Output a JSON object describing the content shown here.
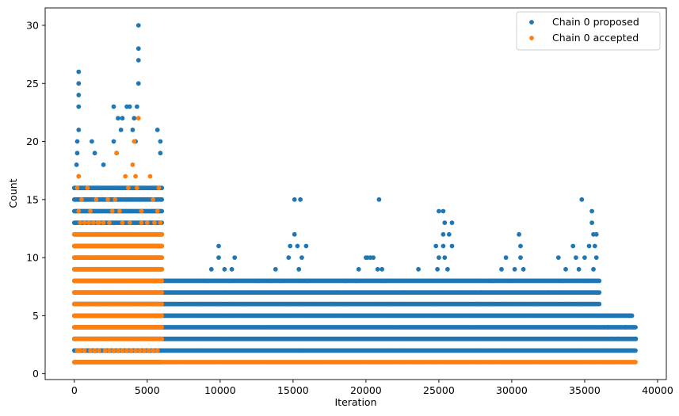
{
  "chart_data": {
    "type": "scatter",
    "title": "",
    "xlabel": "Iteration",
    "ylabel": "Count",
    "xlim": [
      -2000,
      40600
    ],
    "ylim": [
      -0.5,
      31.5
    ],
    "xticks": [
      0,
      5000,
      10000,
      15000,
      20000,
      25000,
      30000,
      35000,
      40000
    ],
    "xtick_labels": [
      "0",
      "5000",
      "10000",
      "15000",
      "20000",
      "25000",
      "30000",
      "35000",
      "40000"
    ],
    "yticks": [
      0,
      5,
      10,
      15,
      20,
      25,
      30
    ],
    "ytick_labels": [
      "0",
      "5",
      "10",
      "15",
      "20",
      "25",
      "30"
    ],
    "grid": false,
    "legend_position": "top-right",
    "series": [
      {
        "name": "Chain 0 proposed",
        "color": "#1f77b4",
        "bands": [
          {
            "y": 1,
            "x": [
              0,
              6000
            ]
          },
          {
            "y": 2,
            "x": [
              0,
              38500
            ]
          },
          {
            "y": 3,
            "x": [
              0,
              38500
            ]
          },
          {
            "y": 4,
            "x": [
              0,
              38500
            ]
          },
          {
            "y": 5,
            "x": [
              0,
              38300
            ]
          },
          {
            "y": 6,
            "x": [
              0,
              36000
            ]
          },
          {
            "y": 7,
            "x": [
              0,
              36000
            ]
          },
          {
            "y": 8,
            "x": [
              0,
              36000
            ]
          },
          {
            "y": 9,
            "x": [
              0,
              6000
            ]
          },
          {
            "y": 10,
            "x": [
              0,
              6000
            ]
          },
          {
            "y": 11,
            "x": [
              0,
              6000
            ]
          },
          {
            "y": 12,
            "x": [
              0,
              6000
            ]
          },
          {
            "y": 13,
            "x": [
              0,
              6000
            ]
          },
          {
            "y": 14,
            "x": [
              0,
              6000
            ]
          },
          {
            "y": 15,
            "x": [
              0,
              6000
            ]
          },
          {
            "y": 16,
            "x": [
              0,
              6000
            ]
          }
        ],
        "points": [
          [
            300,
            26
          ],
          [
            300,
            25
          ],
          [
            300,
            24
          ],
          [
            300,
            23
          ],
          [
            300,
            21
          ],
          [
            200,
            20
          ],
          [
            200,
            19
          ],
          [
            150,
            18
          ],
          [
            300,
            17
          ],
          [
            2700,
            23
          ],
          [
            3000,
            22
          ],
          [
            3300,
            22
          ],
          [
            3600,
            23
          ],
          [
            3800,
            23
          ],
          [
            4100,
            22
          ],
          [
            4300,
            23
          ],
          [
            4400,
            30
          ],
          [
            4400,
            28
          ],
          [
            4400,
            27
          ],
          [
            4400,
            25
          ],
          [
            5700,
            21
          ],
          [
            5900,
            20
          ],
          [
            5900,
            19
          ],
          [
            1200,
            20
          ],
          [
            1400,
            19
          ],
          [
            2000,
            18
          ],
          [
            2700,
            20
          ],
          [
            2900,
            19
          ],
          [
            3200,
            21
          ],
          [
            4000,
            21
          ],
          [
            4200,
            20
          ],
          [
            9900,
            11
          ],
          [
            9900,
            10
          ],
          [
            9400,
            9
          ],
          [
            10300,
            9
          ],
          [
            9200,
            8
          ],
          [
            10600,
            8
          ],
          [
            11000,
            10
          ],
          [
            10800,
            9
          ],
          [
            10400,
            7
          ],
          [
            15100,
            15
          ],
          [
            15500,
            15
          ],
          [
            15100,
            12
          ],
          [
            14800,
            11
          ],
          [
            15300,
            11
          ],
          [
            15900,
            11
          ],
          [
            14700,
            10
          ],
          [
            15600,
            10
          ],
          [
            13800,
            9
          ],
          [
            15400,
            9
          ],
          [
            12600,
            8
          ],
          [
            13500,
            8
          ],
          [
            14100,
            8
          ],
          [
            16000,
            8
          ],
          [
            20900,
            15
          ],
          [
            20000,
            10
          ],
          [
            20100,
            10
          ],
          [
            20300,
            10
          ],
          [
            20500,
            10
          ],
          [
            19500,
            9
          ],
          [
            20800,
            9
          ],
          [
            21100,
            9
          ],
          [
            18600,
            8
          ],
          [
            19300,
            8
          ],
          [
            21200,
            8
          ],
          [
            18000,
            7
          ],
          [
            17600,
            6
          ],
          [
            25000,
            14
          ],
          [
            25300,
            14
          ],
          [
            25900,
            13
          ],
          [
            25400,
            13
          ],
          [
            25300,
            12
          ],
          [
            25700,
            12
          ],
          [
            24800,
            11
          ],
          [
            25300,
            11
          ],
          [
            25900,
            11
          ],
          [
            25000,
            10
          ],
          [
            25400,
            10
          ],
          [
            24900,
            9
          ],
          [
            25600,
            9
          ],
          [
            23600,
            9
          ],
          [
            22600,
            7
          ],
          [
            30500,
            12
          ],
          [
            30600,
            11
          ],
          [
            29600,
            10
          ],
          [
            30600,
            10
          ],
          [
            29300,
            9
          ],
          [
            30200,
            9
          ],
          [
            30800,
            9
          ],
          [
            28600,
            8
          ],
          [
            28800,
            8
          ],
          [
            30100,
            8
          ],
          [
            27900,
            7
          ],
          [
            27600,
            6
          ],
          [
            34800,
            15
          ],
          [
            35500,
            14
          ],
          [
            35500,
            13
          ],
          [
            35800,
            12
          ],
          [
            35600,
            12
          ],
          [
            34200,
            11
          ],
          [
            35300,
            11
          ],
          [
            35700,
            11
          ],
          [
            35800,
            10
          ],
          [
            33200,
            10
          ],
          [
            35000,
            10
          ],
          [
            34400,
            10
          ],
          [
            33700,
            9
          ],
          [
            34600,
            9
          ],
          [
            35600,
            9
          ],
          [
            33500,
            8
          ],
          [
            35200,
            8
          ],
          [
            32500,
            7
          ],
          [
            31700,
            6
          ],
          [
            37500,
            5
          ],
          [
            38100,
            5
          ],
          [
            38300,
            4
          ],
          [
            37800,
            4
          ],
          [
            37300,
            3
          ],
          [
            38500,
            3
          ],
          [
            36600,
            4
          ],
          [
            36900,
            3
          ]
        ]
      },
      {
        "name": "Chain 0 accepted",
        "color": "#ff7f0e",
        "bands": [
          {
            "y": 1,
            "x": [
              0,
              38500
            ]
          },
          {
            "y": 3,
            "x": [
              0,
              6000
            ]
          },
          {
            "y": 4,
            "x": [
              0,
              6000
            ]
          },
          {
            "y": 5,
            "x": [
              0,
              6000
            ]
          },
          {
            "y": 6,
            "x": [
              0,
              6000
            ]
          },
          {
            "y": 7,
            "x": [
              0,
              6000
            ]
          },
          {
            "y": 8,
            "x": [
              0,
              6000
            ]
          },
          {
            "y": 9,
            "x": [
              0,
              6000
            ]
          },
          {
            "y": 10,
            "x": [
              0,
              6000
            ]
          },
          {
            "y": 11,
            "x": [
              0,
              6000
            ]
          },
          {
            "y": 12,
            "x": [
              0,
              6000
            ]
          }
        ],
        "points": [
          [
            300,
            17
          ],
          [
            200,
            16
          ],
          [
            500,
            15
          ],
          [
            300,
            14
          ],
          [
            900,
            16
          ],
          [
            1100,
            14
          ],
          [
            1500,
            15
          ],
          [
            1700,
            13
          ],
          [
            2300,
            15
          ],
          [
            2800,
            15
          ],
          [
            3100,
            14
          ],
          [
            2900,
            19
          ],
          [
            3500,
            17
          ],
          [
            3700,
            16
          ],
          [
            4000,
            18
          ],
          [
            4100,
            20
          ],
          [
            4200,
            17
          ],
          [
            4300,
            16
          ],
          [
            4400,
            22
          ],
          [
            4600,
            14
          ],
          [
            5200,
            17
          ],
          [
            5400,
            15
          ],
          [
            5700,
            14
          ],
          [
            5800,
            16
          ],
          [
            200,
            2
          ],
          [
            400,
            2
          ],
          [
            700,
            2
          ],
          [
            1100,
            2
          ],
          [
            1400,
            2
          ],
          [
            1700,
            2
          ],
          [
            2100,
            2
          ],
          [
            2400,
            2
          ],
          [
            2700,
            2
          ],
          [
            3000,
            2
          ],
          [
            3300,
            2
          ],
          [
            3600,
            2
          ],
          [
            3900,
            2
          ],
          [
            4200,
            2
          ],
          [
            4500,
            2
          ],
          [
            4800,
            2
          ],
          [
            5100,
            2
          ],
          [
            5400,
            2
          ],
          [
            5700,
            2
          ],
          [
            400,
            13
          ],
          [
            700,
            13
          ],
          [
            1000,
            13
          ],
          [
            1300,
            13
          ],
          [
            1600,
            13
          ],
          [
            2000,
            13
          ],
          [
            2400,
            13
          ],
          [
            2600,
            14
          ],
          [
            3300,
            13
          ],
          [
            3800,
            13
          ],
          [
            4600,
            13
          ],
          [
            5000,
            13
          ],
          [
            5500,
            13
          ],
          [
            5900,
            13
          ]
        ]
      }
    ]
  }
}
